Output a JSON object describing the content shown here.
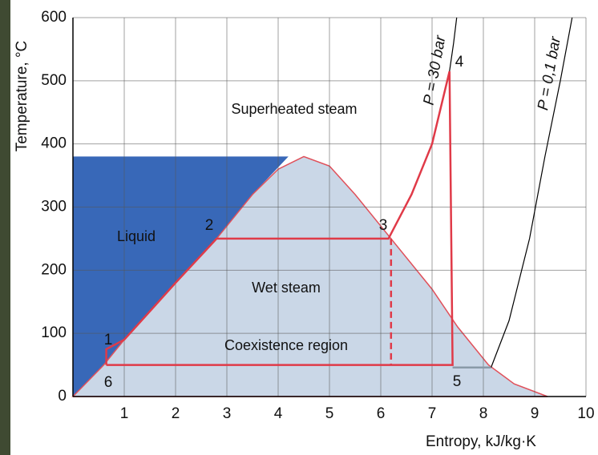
{
  "chart_data": {
    "type": "line",
    "xlabel": "Entropy, kJ/kg·K",
    "ylabel": "Temperature, °C",
    "xlim": [
      0,
      10
    ],
    "ylim": [
      0,
      600
    ],
    "xticks": [
      1,
      2,
      3,
      4,
      5,
      6,
      7,
      8,
      9,
      10
    ],
    "yticks": [
      0,
      100,
      200,
      300,
      400,
      500,
      600
    ],
    "grid": true,
    "series": [
      {
        "style": "fill",
        "color": "#3868b8",
        "x": [
          0,
          0.6,
          1,
          2,
          2.8,
          3.5,
          4.2,
          0
        ],
        "y": [
          0,
          50,
          90,
          180,
          250,
          320,
          380,
          380
        ]
      },
      {
        "style": "fill",
        "color": "#cad7e7",
        "stroke": "#e0505a",
        "x": [
          0,
          0.6,
          1,
          2,
          2.8,
          3.5,
          4,
          4.5,
          5,
          5.5,
          6.2,
          7,
          7.5,
          8.1,
          8.6,
          9.25
        ],
        "y": [
          0,
          50,
          90,
          180,
          250,
          320,
          360,
          380,
          365,
          320,
          250,
          170,
          110,
          50,
          20,
          0
        ]
      },
      {
        "style": "line",
        "color": "#000000",
        "name": "P = 0,1 bar",
        "x": [
          8.15,
          8.5,
          8.9,
          9.2,
          9.5,
          9.73
        ],
        "y": [
          46,
          120,
          250,
          380,
          500,
          600
        ]
      },
      {
        "style": "line",
        "color": "#8a9aa8",
        "x": [
          7.4,
          8.15
        ],
        "y": [
          46,
          46
        ]
      },
      {
        "style": "line",
        "color": "#000000",
        "name": "P = 30 bar",
        "x": [
          7.34,
          7.42,
          7.48
        ],
        "y": [
          515,
          560,
          600
        ]
      },
      {
        "style": "line",
        "color": "#e03a48",
        "x": [
          0.65,
          0.65,
          1,
          2,
          2.8,
          6.15,
          6.6,
          7,
          7.34,
          7.4,
          0.65
        ],
        "y": [
          50,
          75,
          90,
          180,
          250,
          250,
          320,
          400,
          515,
          50,
          50
        ]
      },
      {
        "style": "dashed",
        "color": "#e03a48",
        "x": [
          6.2,
          6.2
        ],
        "y": [
          250,
          50
        ]
      }
    ],
    "annotations": [
      "Superheated steam",
      "Liquid",
      "Wet steam",
      "Coexistence region"
    ],
    "point_labels": [
      "1",
      "2",
      "3",
      "4",
      "5",
      "6"
    ]
  }
}
